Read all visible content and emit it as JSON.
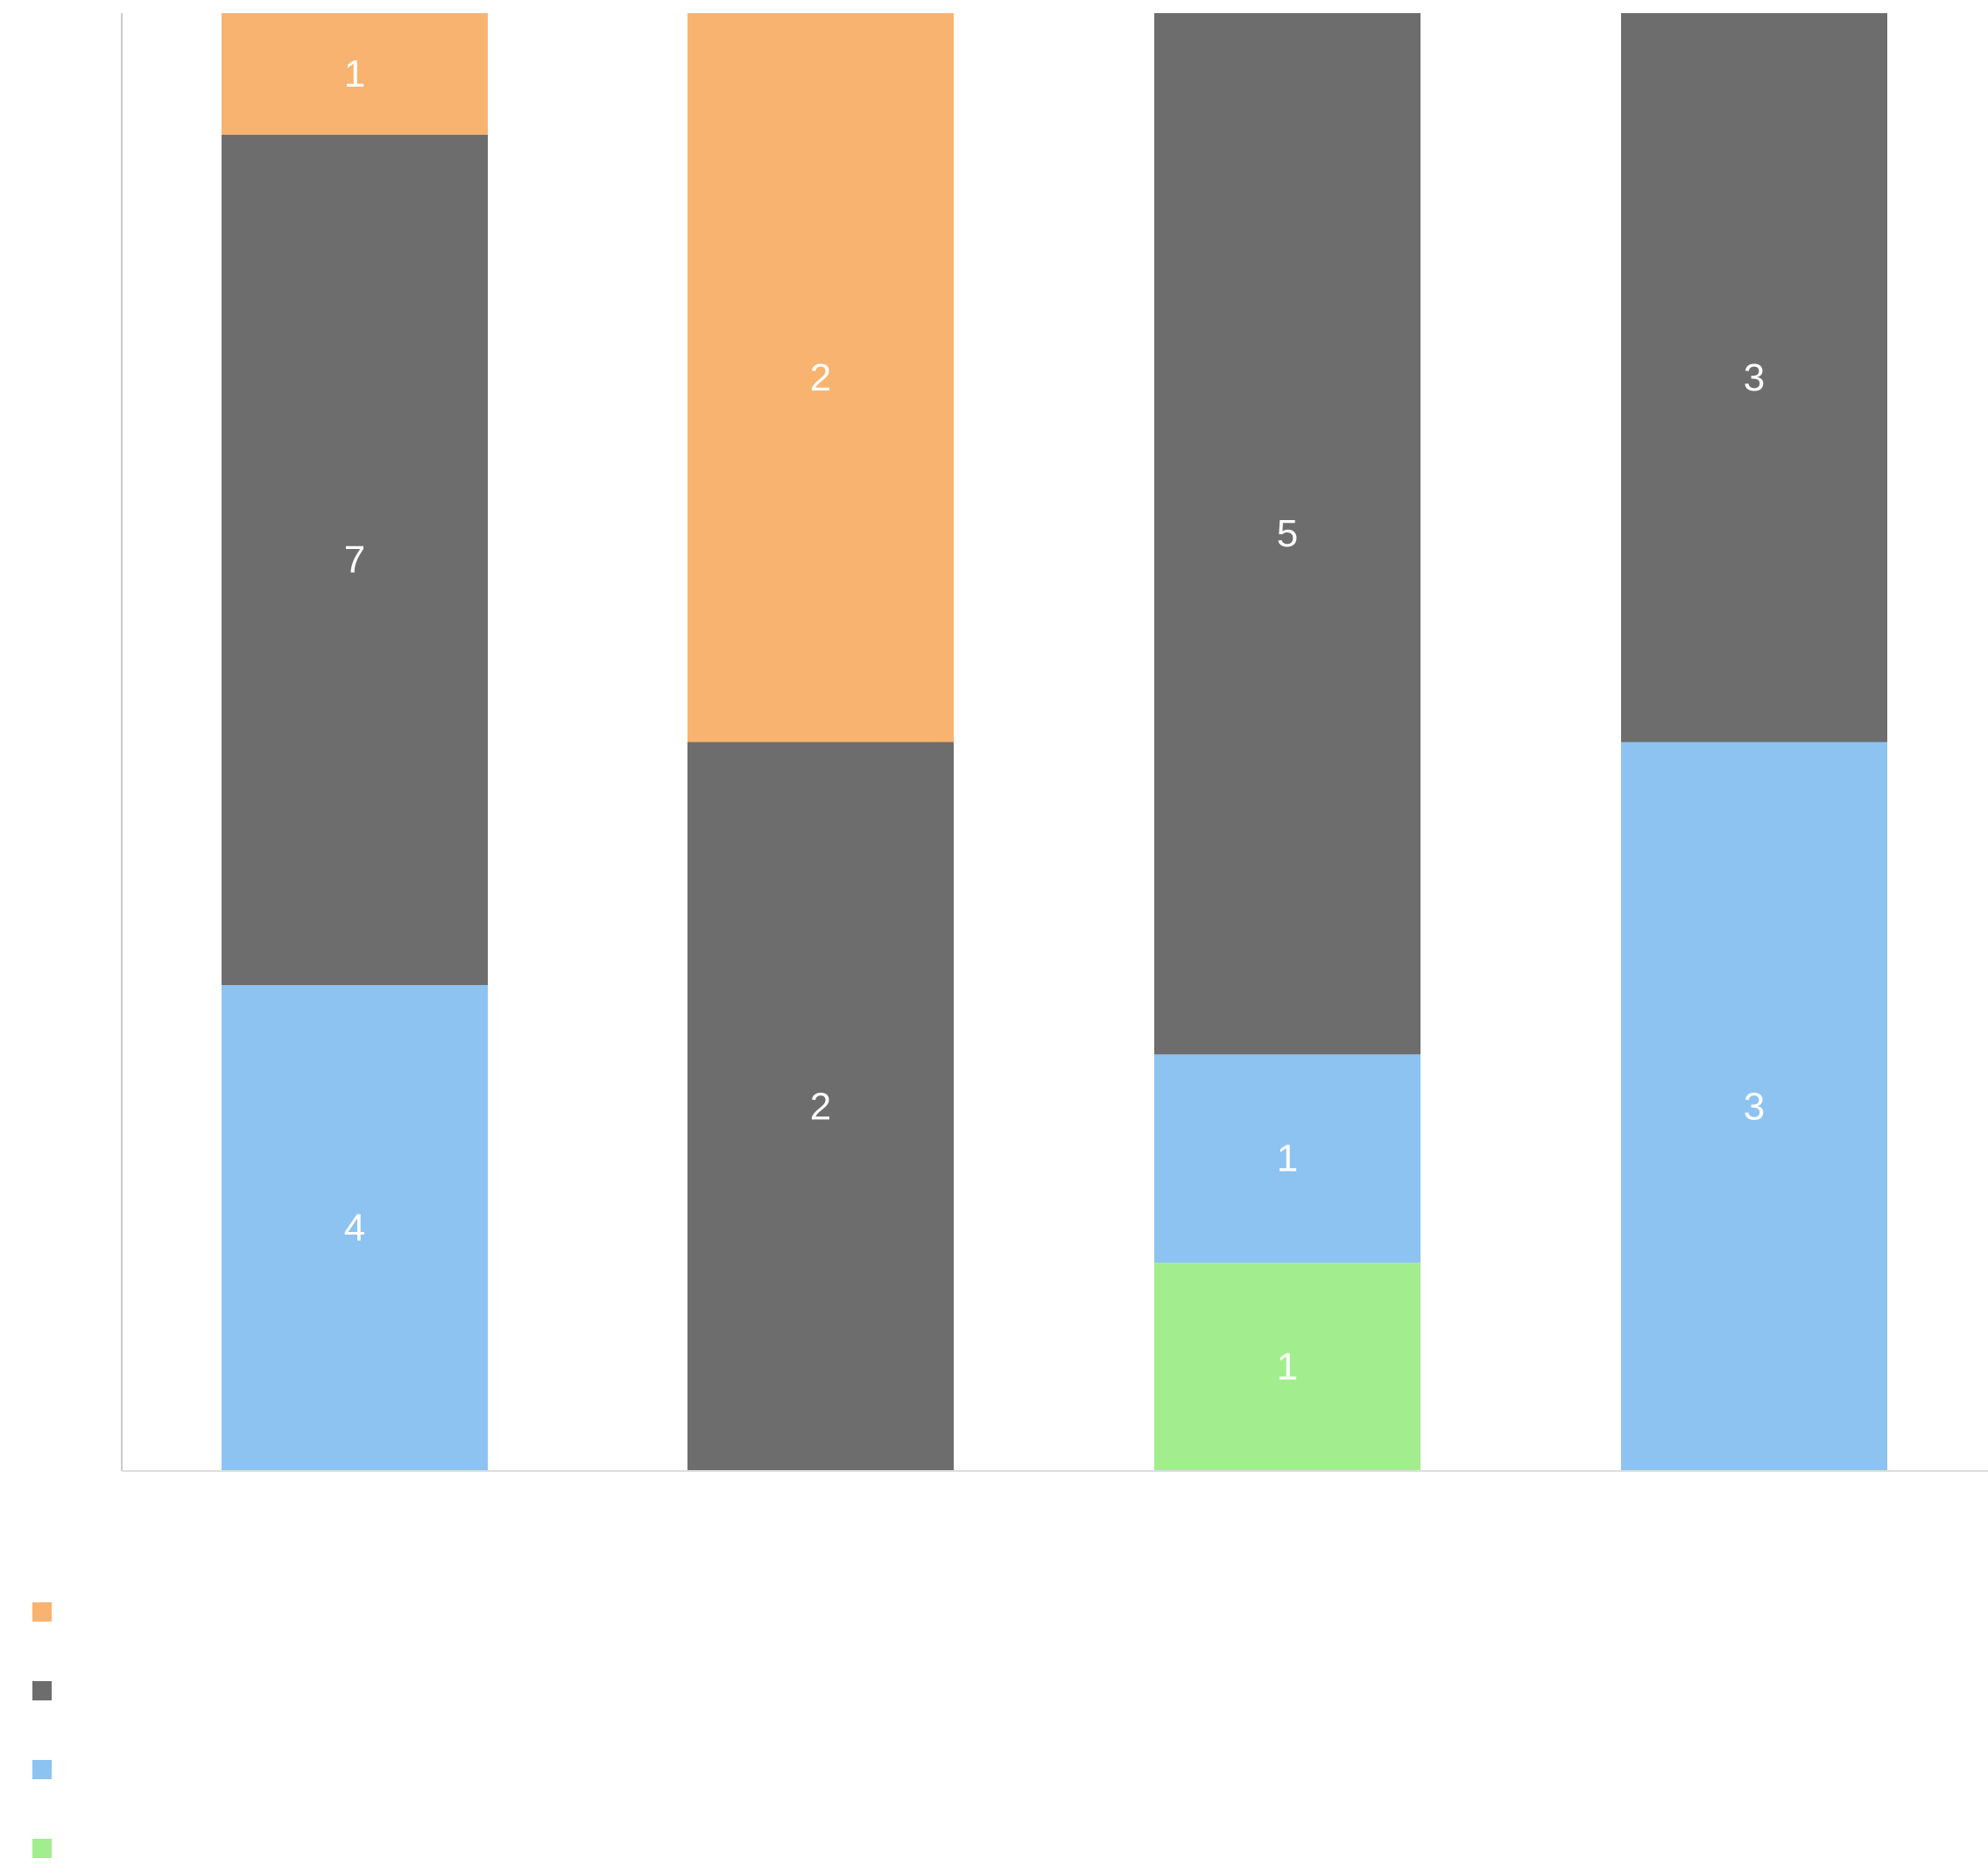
{
  "chart_data": {
    "type": "bar",
    "stacked": true,
    "orientation": "vertical",
    "categories": [
      "",
      "",
      "",
      ""
    ],
    "series": [
      {
        "name": "",
        "color": "#a2ee8f",
        "values": [
          0,
          0,
          1,
          0
        ]
      },
      {
        "name": "",
        "color": "#8dc3f1",
        "values": [
          4,
          0,
          1,
          3
        ]
      },
      {
        "name": "",
        "color": "#6d6d6d",
        "values": [
          7,
          2,
          5,
          3
        ]
      },
      {
        "name": "",
        "color": "#f8b371",
        "values": [
          1,
          2,
          0,
          0
        ]
      }
    ],
    "data_labels": true,
    "normalized": true,
    "legend": {
      "position": "bottom-left",
      "order": [
        "#f8b371",
        "#6d6d6d",
        "#8dc3f1",
        "#a2ee8f"
      ]
    },
    "axes": {
      "y_axis_line": true,
      "x_axis_line": true,
      "grid": false
    },
    "title": "",
    "xlabel": "",
    "ylabel": ""
  }
}
